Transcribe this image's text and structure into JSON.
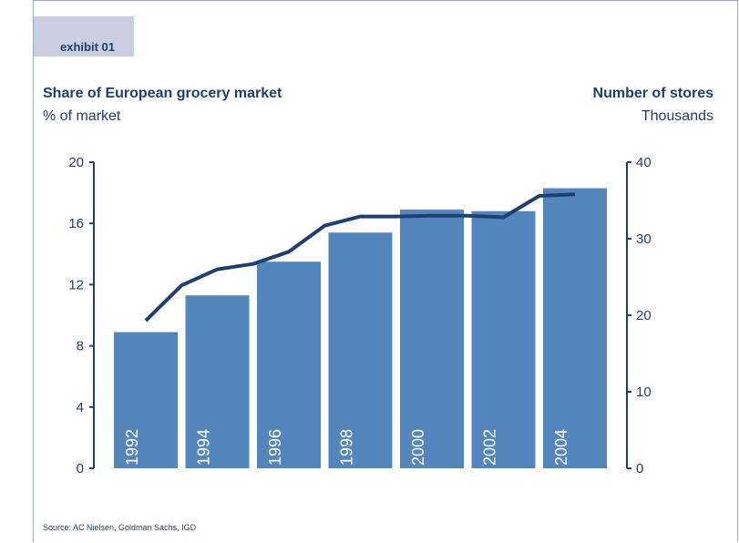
{
  "exhibit_label": "exhibit 01",
  "left_axis": {
    "title": "Share of European grocery market",
    "unit": "% of market"
  },
  "right_axis": {
    "title": "Number of stores",
    "unit": "Thousands"
  },
  "source": "Source: AC Nielsen, Goldman Sachs, IGD",
  "colors": {
    "bar": "#5585bd",
    "line": "#1f3f6e",
    "text": "#1f3f6e",
    "tab": "#c9cfe0"
  },
  "chart_data": {
    "type": "bar",
    "categories": [
      "1992",
      "1994",
      "1996",
      "1998",
      "2000",
      "2002",
      "2004"
    ],
    "series": [
      {
        "type": "bar",
        "axis": "left",
        "values": [
          8.9,
          11.3,
          13.5,
          15.4,
          16.9,
          16.8,
          18.3
        ]
      },
      {
        "type": "line",
        "axis": "right",
        "x": [
          1992,
          1993,
          1994,
          1995,
          1996,
          1997,
          1998,
          1999,
          2000,
          2001,
          2002,
          2003,
          2004
        ],
        "values": [
          19.3,
          23.9,
          26.0,
          26.7,
          28.3,
          31.7,
          32.9,
          32.9,
          33.0,
          33.0,
          32.8,
          35.6,
          35.8
        ]
      }
    ],
    "ylim_left": [
      0,
      20
    ],
    "yticks_left": [
      0,
      4,
      8,
      12,
      16,
      20
    ],
    "ylim_right": [
      0,
      40
    ],
    "yticks_right": [
      0,
      10,
      20,
      30,
      40
    ],
    "ylabel_left": "Share of European grocery market",
    "ylabel_right": "Number of stores",
    "legend": "none",
    "grid": false
  }
}
